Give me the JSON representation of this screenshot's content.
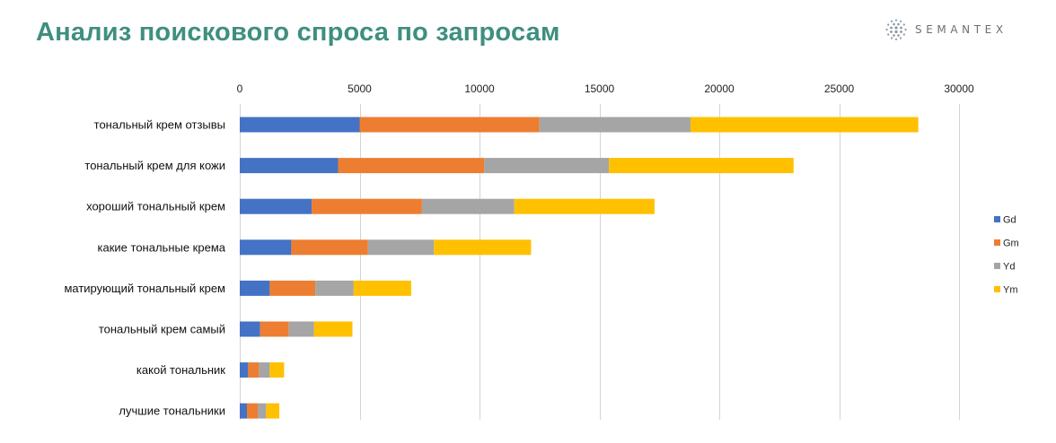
{
  "header": {
    "title": "Анализ поискового спроса по запросам",
    "logo_text": "SEMANTEX",
    "logo_icon": "semantex-dot-sphere-icon"
  },
  "chart_data": {
    "type": "bar",
    "orientation": "horizontal",
    "stacked": true,
    "title": "Анализ поискового спроса по запросам",
    "xlabel": "",
    "ylabel": "",
    "xlim": [
      0,
      30000
    ],
    "x_ticks": [
      0,
      5000,
      10000,
      15000,
      20000,
      25000,
      30000
    ],
    "x_axis_position": "top",
    "grid": true,
    "legend_position": "right",
    "categories": [
      "тональный крем отзывы",
      "тональный крем для кожи",
      "хороший тональный крем",
      "какие тональные крема",
      "матирующий тональный крем",
      "тональный крем самый",
      "какой тональник",
      "лучшие тональники"
    ],
    "series": [
      {
        "name": "Gd",
        "color": "#4472c4",
        "values": [
          5000,
          4100,
          3000,
          2150,
          1250,
          850,
          350,
          300
        ]
      },
      {
        "name": "Gm",
        "color": "#ed7d31",
        "values": [
          7500,
          6100,
          4600,
          3200,
          1900,
          1200,
          450,
          450
        ]
      },
      {
        "name": "Yd",
        "color": "#a5a5a5",
        "values": [
          6300,
          5200,
          3850,
          2750,
          1600,
          1050,
          450,
          350
        ]
      },
      {
        "name": "Ym",
        "color": "#ffc000",
        "values": [
          9500,
          7700,
          5850,
          4050,
          2400,
          1600,
          600,
          550
        ]
      }
    ]
  }
}
